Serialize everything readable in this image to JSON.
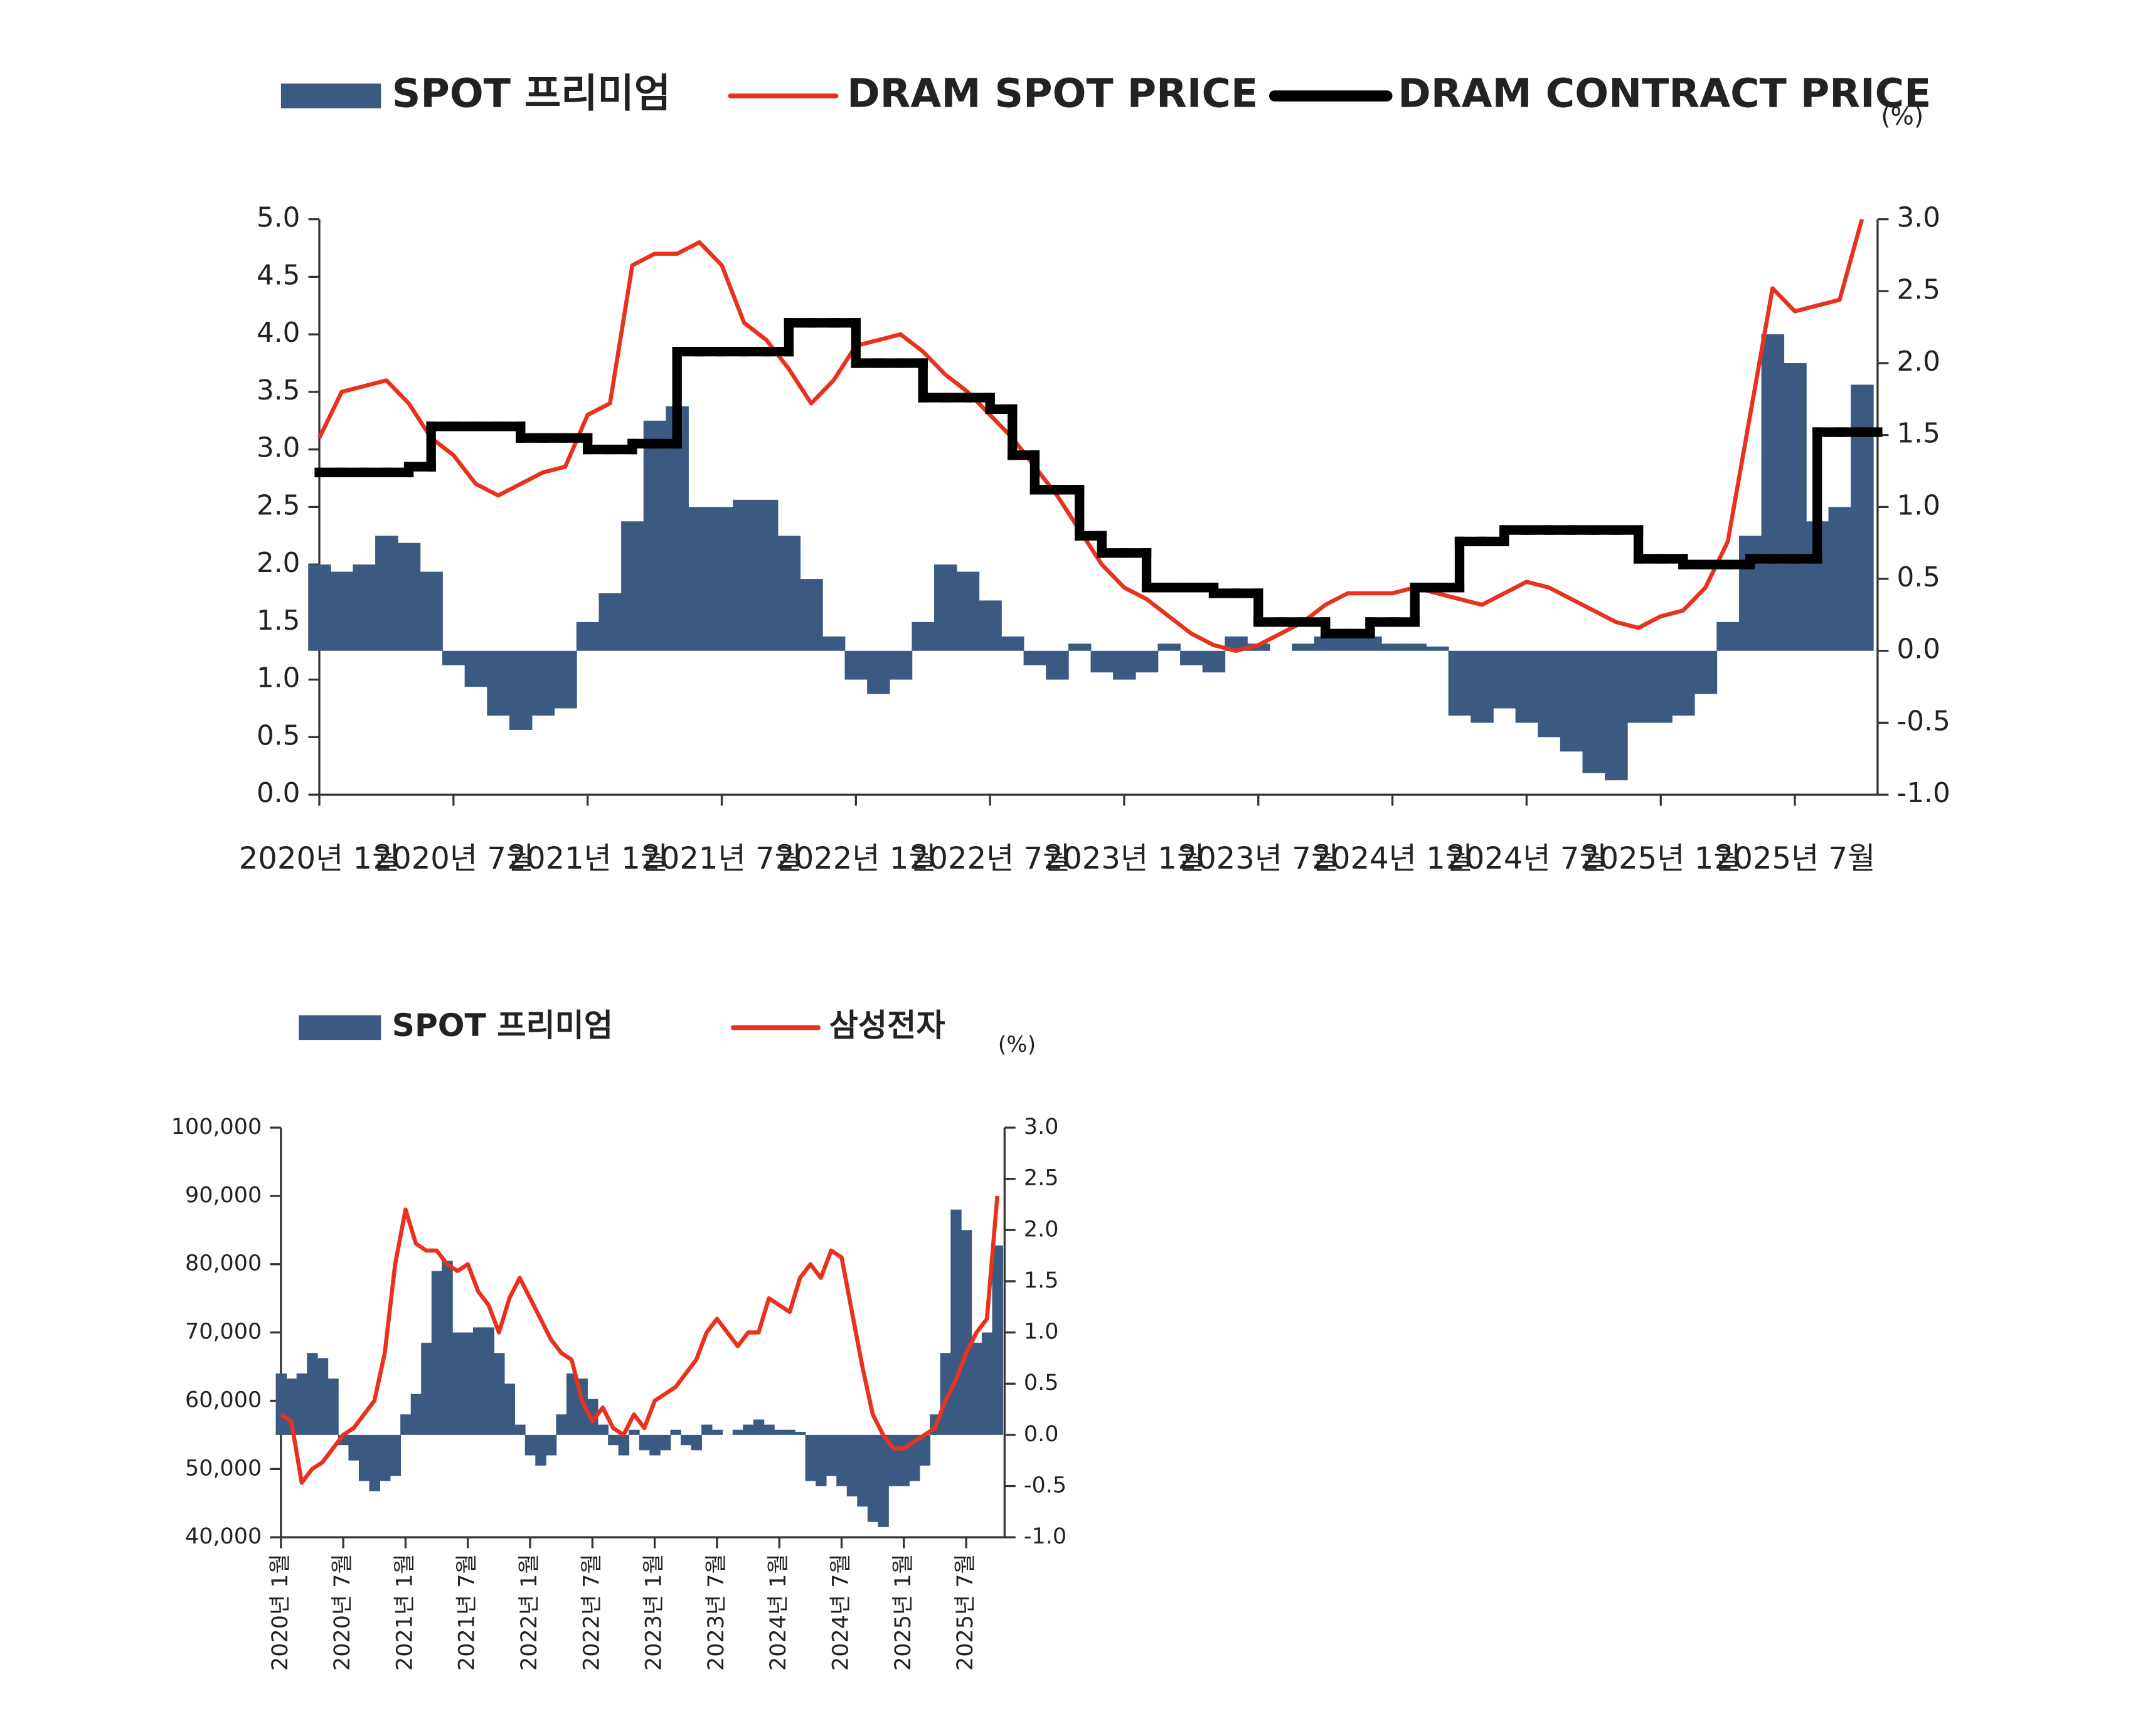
{
  "chart_data": [
    {
      "type": "combo",
      "categories": [
        "2020년 1월",
        null,
        null,
        null,
        null,
        null,
        "2020년 7월",
        null,
        null,
        null,
        null,
        null,
        "2021년 1월",
        null,
        null,
        null,
        null,
        null,
        "2021년 7월",
        null,
        null,
        null,
        null,
        null,
        "2022년 1월",
        null,
        null,
        null,
        null,
        null,
        "2022년 7월",
        null,
        null,
        null,
        null,
        null,
        "2023년 1월",
        null,
        null,
        null,
        null,
        null,
        "2023년 7월",
        null,
        null,
        null,
        null,
        null,
        "2024년 1월",
        null,
        null,
        null,
        null,
        null,
        "2024년 7월",
        null,
        null,
        null,
        null,
        null,
        "2025년 1월",
        null,
        null,
        null,
        null,
        null,
        "2025년 7월",
        null,
        null,
        null
      ],
      "series": [
        {
          "name": "SPOT 프리미엄",
          "type": "bar",
          "axis": "y2",
          "color": "#3b5a82",
          "values": [
            0.6,
            0.55,
            0.6,
            0.8,
            0.75,
            0.55,
            -0.1,
            -0.25,
            -0.45,
            -0.55,
            -0.45,
            -0.4,
            0.2,
            0.4,
            0.9,
            1.6,
            1.7,
            1.0,
            1.0,
            1.05,
            1.05,
            0.8,
            0.5,
            0.1,
            -0.2,
            -0.3,
            -0.2,
            0.2,
            0.6,
            0.55,
            0.35,
            0.1,
            -0.1,
            -0.2,
            0.05,
            -0.15,
            -0.2,
            -0.15,
            0.05,
            -0.1,
            -0.15,
            0.1,
            0.05,
            0.0,
            0.05,
            0.1,
            0.15,
            0.1,
            0.05,
            0.05,
            0.03,
            -0.45,
            -0.5,
            -0.4,
            -0.5,
            -0.6,
            -0.7,
            -0.85,
            -0.9,
            -0.5,
            -0.5,
            -0.45,
            -0.3,
            0.2,
            0.8,
            2.2,
            2.0,
            0.9,
            1.0,
            1.85
          ]
        },
        {
          "name": "DRAM SPOT PRICE",
          "type": "line",
          "color": "#e8321e",
          "values": [
            3.1,
            3.5,
            3.55,
            3.6,
            3.4,
            3.1,
            2.95,
            2.7,
            2.6,
            2.7,
            2.8,
            2.85,
            3.3,
            3.4,
            4.6,
            4.7,
            4.7,
            4.8,
            4.6,
            4.1,
            3.95,
            3.7,
            3.4,
            3.6,
            3.9,
            3.95,
            4.0,
            3.85,
            3.65,
            3.5,
            3.3,
            3.1,
            2.85,
            2.6,
            2.3,
            2.0,
            1.8,
            1.7,
            1.55,
            1.4,
            1.3,
            1.25,
            1.3,
            1.4,
            1.5,
            1.65,
            1.75,
            1.75,
            1.75,
            1.8,
            1.75,
            1.7,
            1.65,
            1.75,
            1.85,
            1.8,
            1.7,
            1.6,
            1.5,
            1.45,
            1.55,
            1.6,
            1.8,
            2.2,
            3.3,
            4.4,
            4.2,
            4.25,
            4.3,
            5.0
          ]
        },
        {
          "name": "DRAM CONTRACT PRICE",
          "type": "step",
          "color": "#000000",
          "values": [
            2.8,
            2.8,
            2.8,
            2.8,
            2.85,
            3.2,
            3.2,
            3.2,
            3.2,
            3.1,
            3.1,
            3.1,
            3.0,
            3.0,
            3.05,
            3.05,
            3.85,
            3.85,
            3.85,
            3.85,
            3.85,
            4.1,
            4.1,
            4.1,
            3.75,
            3.75,
            3.75,
            3.45,
            3.45,
            3.45,
            3.35,
            2.95,
            2.65,
            2.65,
            2.25,
            2.1,
            2.1,
            1.8,
            1.8,
            1.8,
            1.75,
            1.75,
            1.5,
            1.5,
            1.5,
            1.4,
            1.4,
            1.5,
            1.5,
            1.8,
            1.8,
            2.2,
            2.2,
            2.3,
            2.3,
            2.3,
            2.3,
            2.3,
            2.3,
            2.05,
            2.05,
            2.0,
            2.0,
            2.0,
            2.05,
            2.05,
            2.05,
            3.15,
            3.15,
            3.15
          ]
        }
      ],
      "ylim": [
        0,
        5
      ],
      "yticks": [
        {
          "value": 0,
          "label": "0.0"
        },
        0.5,
        {
          "value": 1,
          "label": "1.0"
        },
        1.5,
        {
          "value": 2,
          "label": "2.0"
        },
        2.5,
        {
          "value": 3,
          "label": "3.0"
        },
        3.5,
        {
          "value": 4,
          "label": "4.0"
        },
        4.5,
        {
          "value": 5,
          "label": "5.0"
        }
      ],
      "y2lim": [
        -1,
        3
      ],
      "y2ticks": [
        {
          "value": -1,
          "label": "-1.0"
        },
        -0.5,
        {
          "value": 0,
          "label": "0.0"
        },
        0.5,
        {
          "value": 1,
          "label": "1.0"
        },
        1.5,
        {
          "value": 2,
          "label": "2.0"
        },
        2.5,
        {
          "value": 3,
          "label": "3.0"
        }
      ],
      "y2label": "(%)"
    },
    {
      "type": "combo",
      "categories": [
        "2020년 1월",
        null,
        null,
        null,
        null,
        null,
        "2020년 7월",
        null,
        null,
        null,
        null,
        null,
        "2021년 1월",
        null,
        null,
        null,
        null,
        null,
        "2021년 7월",
        null,
        null,
        null,
        null,
        null,
        "2022년 1월",
        null,
        null,
        null,
        null,
        null,
        "2022년 7월",
        null,
        null,
        null,
        null,
        null,
        "2023년 1월",
        null,
        null,
        null,
        null,
        null,
        "2023년 7월",
        null,
        null,
        null,
        null,
        null,
        "2024년 1월",
        null,
        null,
        null,
        null,
        null,
        "2024년 7월",
        null,
        null,
        null,
        null,
        null,
        "2025년 1월",
        null,
        null,
        null,
        null,
        null,
        "2025년 7월",
        null,
        null,
        null
      ],
      "series": [
        {
          "name": "SPOT 프리미엄",
          "type": "bar",
          "axis": "y2",
          "color": "#3b5a82",
          "values": [
            0.6,
            0.55,
            0.6,
            0.8,
            0.75,
            0.55,
            -0.1,
            -0.25,
            -0.45,
            -0.55,
            -0.45,
            -0.4,
            0.2,
            0.4,
            0.9,
            1.6,
            1.7,
            1.0,
            1.0,
            1.05,
            1.05,
            0.8,
            0.5,
            0.1,
            -0.2,
            -0.3,
            -0.2,
            0.2,
            0.6,
            0.55,
            0.35,
            0.1,
            -0.1,
            -0.2,
            0.05,
            -0.15,
            -0.2,
            -0.15,
            0.05,
            -0.1,
            -0.15,
            0.1,
            0.05,
            0.0,
            0.05,
            0.1,
            0.15,
            0.1,
            0.05,
            0.05,
            0.03,
            -0.45,
            -0.5,
            -0.4,
            -0.5,
            -0.6,
            -0.7,
            -0.85,
            -0.9,
            -0.5,
            -0.5,
            -0.45,
            -0.3,
            0.2,
            0.8,
            2.2,
            2.0,
            0.9,
            1.0,
            1.85
          ]
        },
        {
          "name": "삼성전자",
          "type": "line",
          "color": "#e8321e",
          "values": [
            58000,
            57000,
            48000,
            50000,
            51000,
            53000,
            55000,
            56000,
            58000,
            60000,
            67000,
            80000,
            88000,
            83000,
            82000,
            82000,
            80000,
            79000,
            80000,
            76000,
            74000,
            70000,
            75000,
            78000,
            75000,
            72000,
            69000,
            67000,
            66000,
            60000,
            57000,
            59000,
            56000,
            55000,
            58000,
            56000,
            60000,
            61000,
            62000,
            64000,
            66000,
            70000,
            72000,
            70000,
            68000,
            70000,
            70000,
            75000,
            74000,
            73000,
            78000,
            80000,
            78000,
            82000,
            81000,
            73000,
            65000,
            58000,
            55000,
            53000,
            53000,
            54000,
            55000,
            56000,
            60000,
            63000,
            67000,
            70000,
            72000,
            90000
          ]
        }
      ],
      "ylim": [
        40000,
        100000
      ],
      "yticks": [
        {
          "value": 40000,
          "label": "40,000"
        },
        {
          "value": 50000,
          "label": "50,000"
        },
        {
          "value": 60000,
          "label": "60,000"
        },
        {
          "value": 70000,
          "label": "70,000"
        },
        {
          "value": 80000,
          "label": "80,000"
        },
        {
          "value": 90000,
          "label": "90,000"
        },
        {
          "value": 100000,
          "label": "100,000"
        }
      ],
      "y2lim": [
        -1,
        3
      ],
      "y2ticks": [
        {
          "value": -1,
          "label": "-1.0"
        },
        -0.5,
        {
          "value": 0,
          "label": "0.0"
        },
        0.5,
        {
          "value": 1,
          "label": "1.0"
        },
        1.5,
        {
          "value": 2,
          "label": "2.0"
        },
        2.5,
        {
          "value": 3,
          "label": "3.0"
        }
      ],
      "y2label": "(%)"
    }
  ]
}
